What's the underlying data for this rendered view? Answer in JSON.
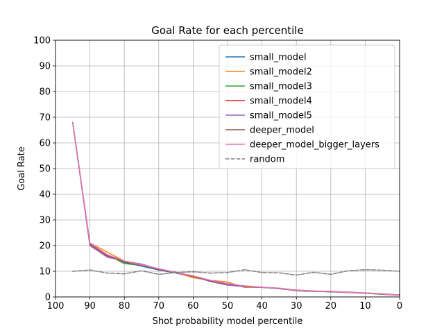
{
  "chart_data": {
    "type": "line",
    "title": "Goal Rate for each percentile",
    "xlabel": "Shot probability model percentile",
    "ylabel": "Goal Rate",
    "xlim": [
      100,
      0
    ],
    "ylim": [
      0,
      100
    ],
    "x_inverted": true,
    "xticks": [
      100,
      90,
      80,
      70,
      60,
      50,
      40,
      30,
      20,
      10,
      0
    ],
    "yticks": [
      0,
      10,
      20,
      30,
      40,
      50,
      60,
      70,
      80,
      90,
      100
    ],
    "grid": true,
    "legend_position": "upper-right",
    "x": [
      95,
      90,
      85,
      80,
      75,
      70,
      65,
      60,
      55,
      50,
      45,
      40,
      35,
      30,
      25,
      20,
      15,
      10,
      5,
      0
    ],
    "series": [
      {
        "name": "small_model",
        "color": "#1f77b4",
        "dash": "solid",
        "values": [
          68,
          20.5,
          16.5,
          13.5,
          12,
          10.5,
          9.3,
          7.8,
          6.3,
          5,
          4.3,
          3.8,
          3.2,
          2.5,
          2.2,
          2,
          1.8,
          1.5,
          1,
          0.8
        ]
      },
      {
        "name": "small_model2",
        "color": "#ff7f0e",
        "dash": "solid",
        "values": [
          68,
          21,
          17.5,
          14,
          12.5,
          11,
          9.5,
          7.5,
          6.5,
          5.8,
          3.7,
          3.8,
          3.3,
          2.7,
          2.3,
          2.2,
          1.7,
          1.6,
          1.2,
          0.8
        ]
      },
      {
        "name": "small_model3",
        "color": "#2ca02c",
        "dash": "solid",
        "values": [
          68,
          20.5,
          16.5,
          13,
          12.3,
          10.8,
          9.6,
          8,
          6.2,
          5,
          4.2,
          3.7,
          3.4,
          2.6,
          2.3,
          2,
          1.9,
          1.5,
          1,
          0.7
        ]
      },
      {
        "name": "small_model4",
        "color": "#d62728",
        "dash": "solid",
        "values": [
          68,
          20.5,
          16,
          13.8,
          12.5,
          10.7,
          9.5,
          8.2,
          6.1,
          5,
          4.1,
          3.8,
          3.3,
          2.5,
          2.2,
          2.1,
          1.8,
          1.5,
          1.1,
          0.7
        ]
      },
      {
        "name": "small_model5",
        "color": "#9467bd",
        "dash": "solid",
        "values": [
          68,
          20,
          15.5,
          14,
          12.8,
          10.9,
          9.5,
          8.1,
          6,
          4.6,
          4,
          3.7,
          3.4,
          2.4,
          2.1,
          2.2,
          1.7,
          1.5,
          1.1,
          0.8
        ]
      },
      {
        "name": "deeper_model",
        "color": "#8c564b",
        "dash": "solid",
        "values": [
          68,
          20.5,
          16.2,
          13.6,
          12.3,
          10.8,
          9.6,
          8,
          6.2,
          5,
          4.2,
          3.7,
          3.3,
          2.5,
          2.2,
          2.1,
          1.8,
          1.5,
          1.1,
          0.7
        ]
      },
      {
        "name": "deeper_model_bigger_layers",
        "color": "#e377c2",
        "dash": "solid",
        "values": [
          68,
          21,
          16.5,
          14,
          12.5,
          11,
          9.5,
          8.2,
          6.5,
          5.2,
          4.3,
          3.8,
          3.4,
          2.6,
          2.2,
          2.2,
          1.8,
          1.6,
          1.1,
          0.8
        ]
      },
      {
        "name": "random",
        "color": "#7f7f7f",
        "dash": "dashed",
        "values": [
          10,
          10.5,
          9.3,
          9,
          10.2,
          8.8,
          9.5,
          9.8,
          9.3,
          9.5,
          10.6,
          9.5,
          9.4,
          8.5,
          9.6,
          8.8,
          10.2,
          10.6,
          10.4,
          10
        ]
      }
    ]
  }
}
